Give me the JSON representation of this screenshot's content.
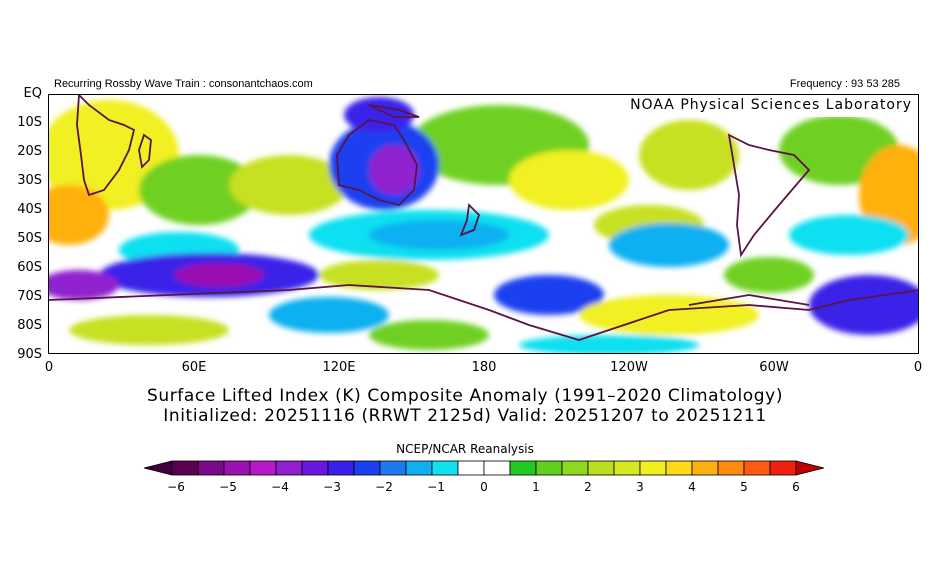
{
  "header": {
    "left": "Recurring Rossby Wave Train : consonantchaos.com",
    "right": "Frequency : 93 53 285"
  },
  "watermark": "NOAA Physical Sciences Laboratory",
  "axes": {
    "lat_labels": [
      "EQ",
      "10S",
      "20S",
      "30S",
      "40S",
      "50S",
      "60S",
      "70S",
      "80S",
      "90S"
    ],
    "lon_labels": [
      "0",
      "60E",
      "120E",
      "180",
      "120W",
      "60W",
      "0"
    ]
  },
  "title": {
    "line1": "Surface Lifted Index (K) Composite Anomaly (1991–2020 Climatology)",
    "line2": "Initialized: 20251116 (RRWT 2125d) Valid: 20251207 to 20251211"
  },
  "source": "NCEP/NCAR Reanalysis",
  "colorbar": {
    "labels": [
      "−6",
      "−5",
      "−4",
      "−3",
      "−2",
      "−1",
      "0",
      "1",
      "2",
      "3",
      "4",
      "5",
      "6"
    ],
    "colors": [
      "#5a0050",
      "#7a0a8a",
      "#9a10b0",
      "#b818c8",
      "#9020d0",
      "#6a18e0",
      "#3a20e8",
      "#1a40f0",
      "#1e78ee",
      "#10b0f0",
      "#10e0f0",
      "#ffffff",
      "#ffffff",
      "#20c820",
      "#60d020",
      "#90d820",
      "#b8e020",
      "#d8e820",
      "#f0f020",
      "#ffd81a",
      "#ffb010",
      "#ff8a10",
      "#ff5a10",
      "#f02010"
    ],
    "min_arrow": "#400040",
    "max_arrow": "#c00000"
  },
  "palette": {
    "yellow": "#f0f020",
    "yellow_green": "#c8e020",
    "green": "#70d020",
    "bright_green": "#20c820",
    "orange": "#ffb010",
    "cyan": "#10e0f0",
    "sky": "#10b0f0",
    "blue": "#1a40f0",
    "indigo": "#3a20e8",
    "purple": "#9020d0",
    "magenta": "#9a10b0",
    "coast": "#5a1448"
  }
}
